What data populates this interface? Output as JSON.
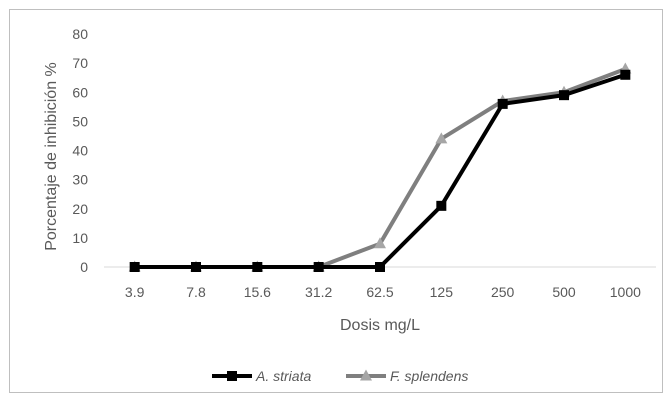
{
  "chart_data": {
    "type": "line",
    "title": "",
    "xlabel": "Dosis mg/L",
    "ylabel": "Porcentaje de inhibición %",
    "categories": [
      "3.9",
      "7.8",
      "15.6",
      "31.2",
      "62.5",
      "125",
      "250",
      "500",
      "1000"
    ],
    "yticks": [
      "0",
      "10",
      "20",
      "30",
      "40",
      "50",
      "60",
      "70",
      "80"
    ],
    "ylim": [
      0,
      80
    ],
    "grid": false,
    "legend_position": "bottom",
    "series": [
      {
        "name": "A. striata",
        "marker": "square",
        "color": "#000000",
        "values": [
          0,
          0,
          0,
          0,
          0,
          21,
          56,
          59,
          66
        ]
      },
      {
        "name": "F. splendens",
        "marker": "triangle",
        "color": "#7f7f7f",
        "marker_color": "#a6a6a6",
        "values": [
          0,
          0,
          0,
          0,
          8,
          44,
          57,
          60,
          68
        ]
      }
    ]
  }
}
